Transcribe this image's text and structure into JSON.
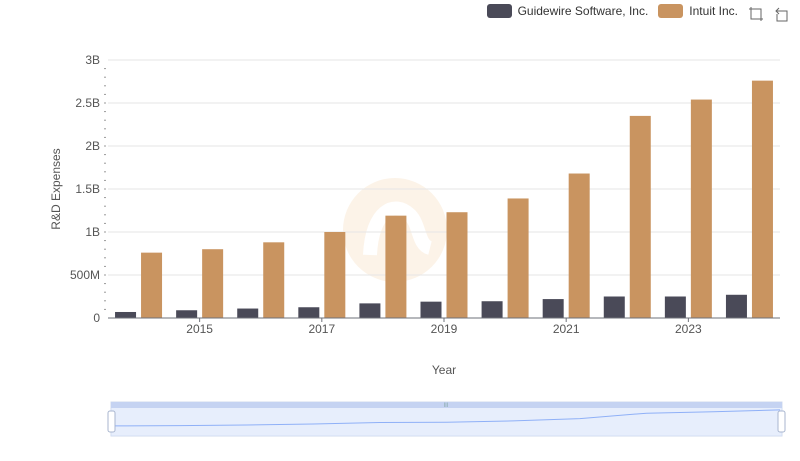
{
  "legend": {
    "items": [
      {
        "label": "Guidewire Software, Inc.",
        "color": "#4a4a58"
      },
      {
        "label": "Intuit Inc.",
        "color": "#c99460"
      }
    ]
  },
  "toolbox": {
    "icons": [
      "zoom-icon",
      "restore-icon"
    ]
  },
  "colors": {
    "guidewire": "#4a4a58",
    "intuit": "#c99460",
    "grid": "#e6e6e6",
    "axis": "#6e7079",
    "slider_fill": "#d4e0fa",
    "slider_line": "#8fb0f7"
  },
  "chart_data": {
    "type": "bar",
    "title": "",
    "xlabel": "Year",
    "ylabel": "R&D Expenses",
    "x": [
      2014,
      2015,
      2016,
      2017,
      2018,
      2019,
      2020,
      2021,
      2022,
      2023,
      2024
    ],
    "x_tick_labels": [
      "2015",
      "2017",
      "2019",
      "2021",
      "2023"
    ],
    "y_tick_labels": [
      "0",
      "500M",
      "1B",
      "1.5B",
      "2B",
      "2.5B",
      "3B"
    ],
    "ylim": [
      0,
      3000000000
    ],
    "grid": true,
    "legend_position": "top-right",
    "series": [
      {
        "name": "Guidewire Software, Inc.",
        "values": [
          70000000,
          90000000,
          110000000,
          125000000,
          170000000,
          190000000,
          195000000,
          220000000,
          250000000,
          250000000,
          270000000
        ]
      },
      {
        "name": "Intuit Inc.",
        "values": [
          760000000,
          800000000,
          880000000,
          1000000000,
          1190000000,
          1230000000,
          1390000000,
          1680000000,
          2350000000,
          2540000000,
          2760000000
        ]
      }
    ]
  }
}
